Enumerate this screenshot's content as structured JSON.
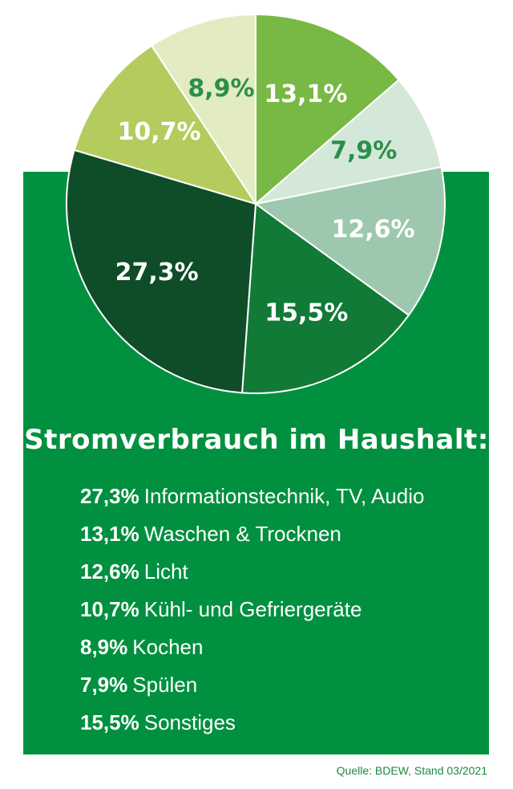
{
  "chart_data": {
    "type": "pie",
    "title": "Stromverbrauch im Haushalt:",
    "unit": "%",
    "slices": [
      {
        "label": "Waschen & Trocknen",
        "value": 13.1,
        "text": "13,1%",
        "color": "#78b844",
        "text_color": "#ffffff"
      },
      {
        "label": "Spülen",
        "value": 7.9,
        "text": "7,9%",
        "color": "#d3e8d8",
        "text_color": "#2a8f4a"
      },
      {
        "label": "Licht",
        "value": 12.6,
        "text": "12,6%",
        "color": "#9ec8ad",
        "text_color": "#ffffff"
      },
      {
        "label": "Sonstiges",
        "value": 15.5,
        "text": "15,5%",
        "color": "#117a36",
        "text_color": "#ffffff"
      },
      {
        "label": "Informationstechnik, TV, Audio",
        "value": 27.3,
        "text": "27,3%",
        "color": "#0f4c28",
        "text_color": "#ffffff"
      },
      {
        "label": "Kühl- und Gefriergeräte",
        "value": 10.7,
        "text": "10,7%",
        "color": "#b4cc5e",
        "text_color": "#ffffff"
      },
      {
        "label": "Kochen",
        "value": 8.9,
        "text": "8,9%",
        "color": "#e3ebc3",
        "text_color": "#2a8f4a"
      }
    ],
    "legend": [
      {
        "pct": "27,3%",
        "label": "Informationstechnik, TV, Audio"
      },
      {
        "pct": "13,1%",
        "label": "Waschen & Trocknen"
      },
      {
        "pct": "12,6%",
        "label": "Licht"
      },
      {
        "pct": "10,7%",
        "label": "Kühl- und Gefriergeräte"
      },
      {
        "pct": "8,9%",
        "label": "Kochen"
      },
      {
        "pct": "7,9%",
        "label": "Spülen"
      },
      {
        "pct": "15,5%",
        "label": "Sonstiges"
      }
    ],
    "source": "Quelle: BDEW, Stand 03/2021"
  },
  "colors": {
    "panel": "#00903f",
    "source_text": "#1d8a3f"
  }
}
